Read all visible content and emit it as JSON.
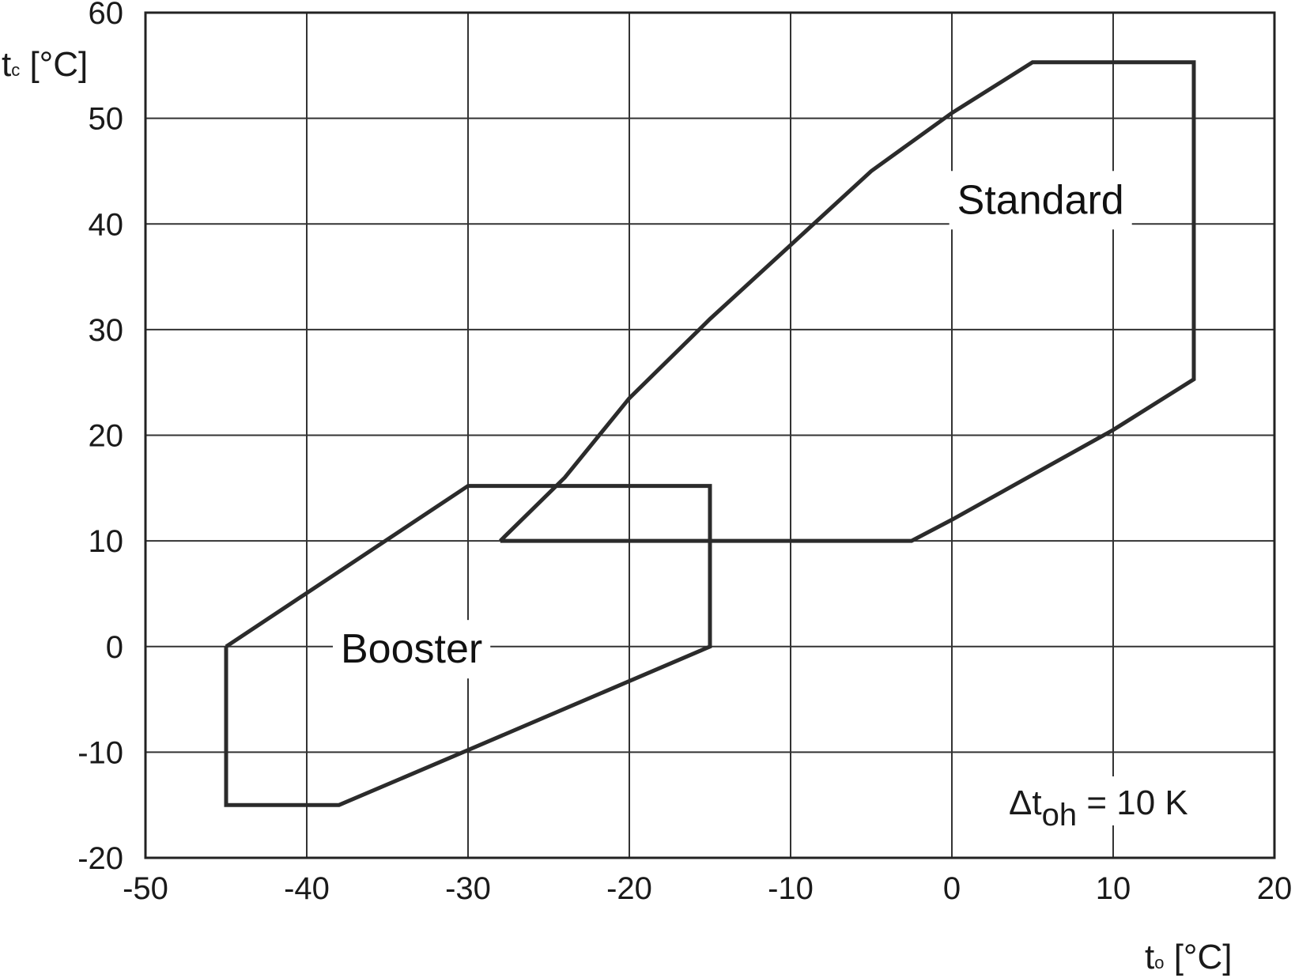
{
  "chart_data": {
    "type": "line",
    "title": "",
    "xlabel": {
      "main": "t",
      "sub": "o",
      "unit": " [°C]"
    },
    "ylabel": {
      "main": "t",
      "sub": "c",
      "unit": " [°C]"
    },
    "xlim": [
      -50,
      20
    ],
    "ylim": [
      -20,
      60
    ],
    "xticks": [
      "-50",
      "-40",
      "-30",
      "-20",
      "-10",
      "0",
      "10",
      "20"
    ],
    "yticks": [
      "60",
      "50",
      "40",
      "30",
      "20",
      "10",
      "0",
      "-10",
      "-20"
    ],
    "grid": true,
    "annotation": {
      "prefix": "Δt",
      "sub": "oh",
      "suffix": " = 10 K"
    },
    "series": [
      {
        "name": "Standard",
        "label_at": [
          5.5,
          42
        ],
        "points": [
          [
            -28,
            10
          ],
          [
            -24,
            16
          ],
          [
            -20,
            23.5
          ],
          [
            -15,
            31
          ],
          [
            -10,
            38
          ],
          [
            -5,
            45
          ],
          [
            0,
            50.5
          ],
          [
            5,
            55.3
          ],
          [
            15,
            55.3
          ],
          [
            15,
            25.3
          ],
          [
            10,
            20.5
          ],
          [
            0,
            12
          ],
          [
            -2.5,
            10
          ],
          [
            -28,
            10
          ]
        ]
      },
      {
        "name": "Booster",
        "label_at": [
          -33.5,
          -0.5
        ],
        "points": [
          [
            -45,
            0
          ],
          [
            -30,
            15.2
          ],
          [
            -15,
            15.2
          ],
          [
            -15,
            0
          ],
          [
            -30,
            -9.8
          ],
          [
            -38,
            -15
          ],
          [
            -45,
            -15
          ],
          [
            -45,
            0
          ]
        ]
      }
    ]
  }
}
